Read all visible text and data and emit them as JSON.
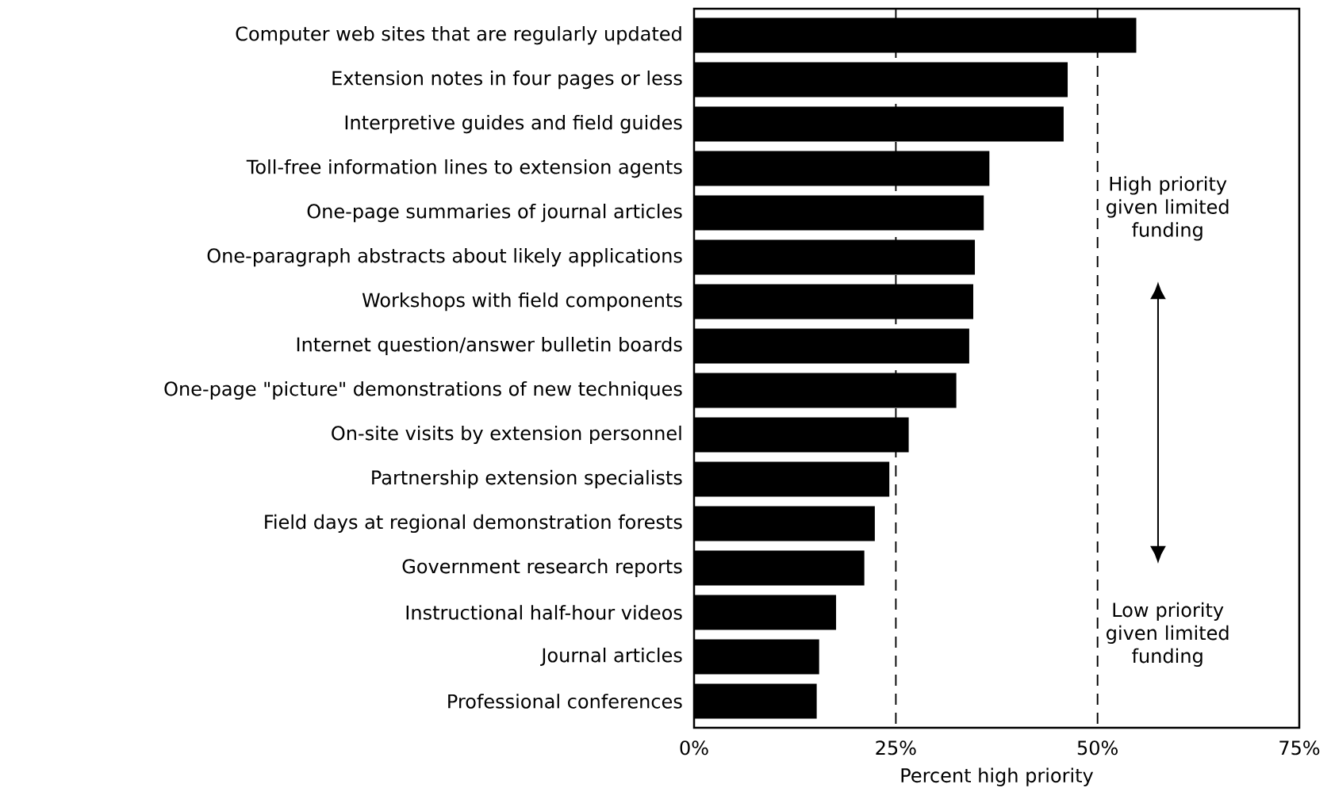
{
  "chart_data": {
    "type": "bar",
    "orientation": "horizontal",
    "xlabel": "Percent high priority",
    "categories": [
      "Computer web sites that are regularly updated",
      "Extension notes in four pages or less",
      "Interpretive guides and field guides",
      "Toll-free information lines to extension agents",
      "One-page summaries of journal articles",
      "One-paragraph abstracts about likely applications",
      "Workshops with field components",
      "Internet question/answer bulletin boards",
      "One-page \"picture\" demonstrations of new techniques",
      "On-site visits by extension personnel",
      "Partnership extension specialists",
      "Field days at regional demonstration forests",
      "Government research reports",
      "Instructional half-hour videos",
      "Journal articles",
      "Professional conferences"
    ],
    "values": [
      54.8,
      46.3,
      45.8,
      36.6,
      35.9,
      34.8,
      34.6,
      34.1,
      32.5,
      26.6,
      24.2,
      22.4,
      21.1,
      17.6,
      15.5,
      15.2
    ],
    "color": "#000000",
    "xlim": [
      0,
      75
    ],
    "xticks": [
      {
        "value": 0,
        "label": "0%"
      },
      {
        "value": 25,
        "label": "25%"
      },
      {
        "value": 50,
        "label": "50%"
      },
      {
        "value": 75,
        "label": "75%"
      }
    ],
    "ref_lines": [
      {
        "axis": "x",
        "value": 25,
        "line_style": "dashed"
      },
      {
        "axis": "x",
        "value": 50,
        "line_style": "dashed"
      }
    ],
    "annotations": [
      "High priority given limited funding",
      "Low priority given limited funding"
    ]
  }
}
